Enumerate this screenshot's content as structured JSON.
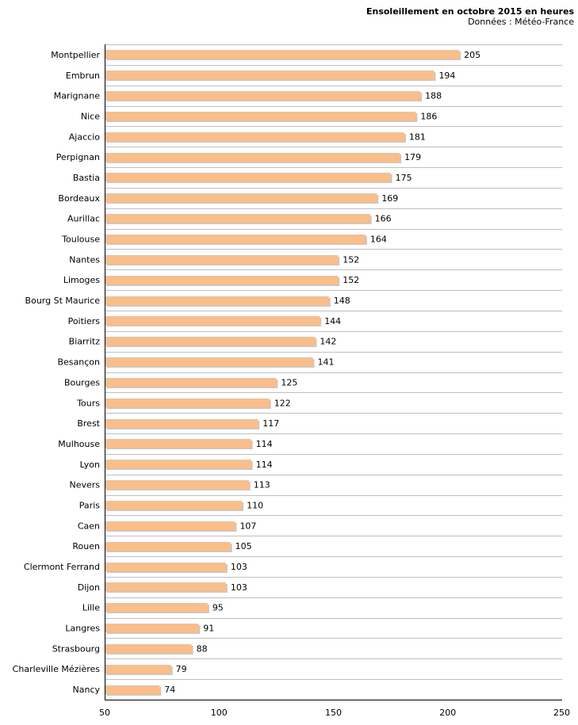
{
  "chart_data": {
    "type": "bar",
    "orientation": "horizontal",
    "title": "Ensoleillement en octobre 2015 en heures",
    "subtitle": "Données : Météo-France",
    "xlabel": "",
    "ylabel": "",
    "xlim": [
      50,
      250
    ],
    "xticks": [
      50,
      100,
      150,
      200,
      250
    ],
    "grid": "horizontal",
    "bar_color": "#f9be8a",
    "bar_shadow_color": "#b0b0b0",
    "categories": [
      "Montpellier",
      "Embrun",
      "Marignane",
      "Nice",
      "Ajaccio",
      "Perpignan",
      "Bastia",
      "Bordeaux",
      "Aurillac",
      "Toulouse",
      "Nantes",
      "Limoges",
      "Bourg St Maurice",
      "Poitiers",
      "Biarritz",
      "Besançon",
      "Bourges",
      "Tours",
      "Brest",
      "Mulhouse",
      "Lyon",
      "Nevers",
      "Paris",
      "Caen",
      "Rouen",
      "Clermont Ferrand",
      "Dijon",
      "Lille",
      "Langres",
      "Strasbourg",
      "Charleville Mézières",
      "Nancy"
    ],
    "values": [
      205,
      194,
      188,
      186,
      181,
      179,
      175,
      169,
      166,
      164,
      152,
      152,
      148,
      144,
      142,
      141,
      125,
      122,
      117,
      114,
      114,
      113,
      110,
      107,
      105,
      103,
      103,
      95,
      91,
      88,
      79,
      74
    ]
  }
}
